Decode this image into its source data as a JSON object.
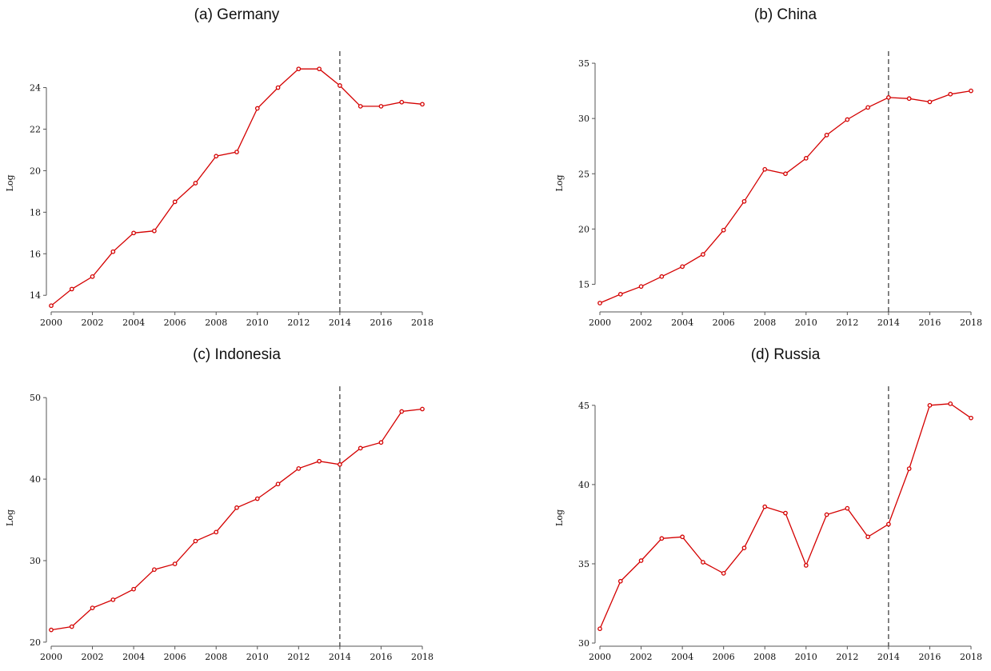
{
  "chart_data": [
    {
      "type": "line",
      "title": "(a) Germany",
      "xlabel": "",
      "ylabel": "Log",
      "x": [
        2000,
        2001,
        2002,
        2003,
        2004,
        2005,
        2006,
        2007,
        2008,
        2009,
        2010,
        2011,
        2012,
        2013,
        2014,
        2015,
        2016,
        2017,
        2018
      ],
      "values": [
        13.5,
        14.3,
        14.9,
        16.1,
        17.0,
        17.1,
        18.5,
        19.4,
        20.7,
        20.9,
        23.0,
        24.0,
        24.9,
        24.9,
        24.1,
        23.1,
        23.1,
        23.3,
        23.2
      ],
      "xticks": [
        2000,
        2002,
        2004,
        2006,
        2008,
        2010,
        2012,
        2014,
        2016,
        2018
      ],
      "yticks": [
        14,
        16,
        18,
        20,
        22,
        24
      ],
      "ylim": [
        13.2,
        25.6
      ],
      "vline": 2014,
      "grid": false,
      "line_color": "#d40000"
    },
    {
      "type": "line",
      "title": "(b) China",
      "xlabel": "",
      "ylabel": "Log",
      "x": [
        2000,
        2001,
        2002,
        2003,
        2004,
        2005,
        2006,
        2007,
        2008,
        2009,
        2010,
        2011,
        2012,
        2013,
        2014,
        2015,
        2016,
        2017,
        2018
      ],
      "values": [
        13.3,
        14.1,
        14.8,
        15.7,
        16.6,
        17.7,
        19.9,
        22.5,
        25.4,
        25.0,
        26.4,
        28.5,
        29.9,
        31.0,
        31.9,
        31.8,
        31.5,
        32.2,
        32.5
      ],
      "xticks": [
        2000,
        2002,
        2004,
        2006,
        2008,
        2010,
        2012,
        2014,
        2016,
        2018
      ],
      "yticks": [
        15,
        20,
        25,
        30,
        35
      ],
      "ylim": [
        12.5,
        35.8
      ],
      "vline": 2014,
      "grid": false,
      "line_color": "#d40000"
    },
    {
      "type": "line",
      "title": "(c) Indonesia",
      "xlabel": "",
      "ylabel": "Log",
      "x": [
        2000,
        2001,
        2002,
        2003,
        2004,
        2005,
        2006,
        2007,
        2008,
        2009,
        2010,
        2011,
        2012,
        2013,
        2014,
        2015,
        2016,
        2017,
        2018
      ],
      "values": [
        21.5,
        21.9,
        24.2,
        25.2,
        26.5,
        28.9,
        29.6,
        32.4,
        33.5,
        36.5,
        37.6,
        39.4,
        41.3,
        42.2,
        41.8,
        43.8,
        44.5,
        48.3,
        48.6
      ],
      "xticks": [
        2000,
        2002,
        2004,
        2006,
        2008,
        2010,
        2012,
        2014,
        2016,
        2018
      ],
      "yticks": [
        20,
        30,
        40,
        50
      ],
      "ylim": [
        19.5,
        51.0
      ],
      "vline": 2014,
      "grid": false,
      "line_color": "#d40000"
    },
    {
      "type": "line",
      "title": "(d) Russia",
      "xlabel": "",
      "ylabel": "Log",
      "x": [
        2000,
        2001,
        2002,
        2003,
        2004,
        2005,
        2006,
        2007,
        2008,
        2009,
        2010,
        2011,
        2012,
        2013,
        2014,
        2015,
        2016,
        2017,
        2018
      ],
      "values": [
        30.9,
        33.9,
        35.2,
        36.6,
        36.7,
        35.1,
        34.4,
        36.0,
        38.6,
        38.2,
        34.9,
        38.1,
        38.5,
        36.7,
        37.5,
        41.0,
        45.0,
        45.1,
        44.2
      ],
      "xticks": [
        2000,
        2002,
        2004,
        2006,
        2008,
        2010,
        2012,
        2014,
        2016,
        2018
      ],
      "yticks": [
        30,
        35,
        40,
        45
      ],
      "ylim": [
        29.8,
        46.0
      ],
      "vline": 2014,
      "grid": false,
      "line_color": "#d40000"
    }
  ]
}
